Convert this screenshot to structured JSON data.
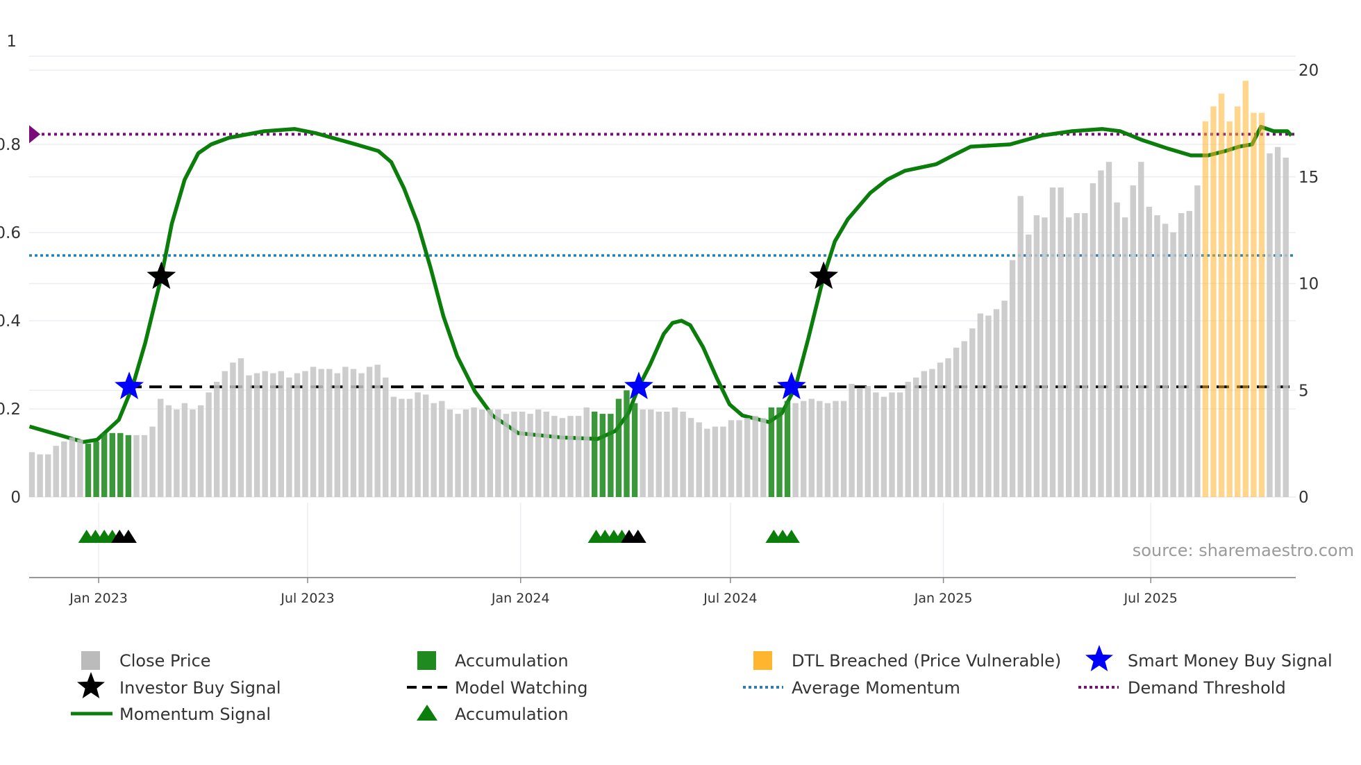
{
  "chart_data": {
    "type": "bar",
    "title": "",
    "x_unit": "week index",
    "x_ticks": [
      {
        "label": "Jan 2023",
        "week": 8.3
      },
      {
        "label": "Jul 2023",
        "week": 34.3
      },
      {
        "label": "Jan 2024",
        "week": 60.8
      },
      {
        "label": "Jul 2024",
        "week": 86.9
      },
      {
        "label": "Jan 2025",
        "week": 113.4
      },
      {
        "label": "Jul 2025",
        "week": 139.2
      }
    ],
    "left_axis": {
      "range": [
        0,
        1
      ],
      "ticks": [
        "0",
        "0.2",
        "0.4",
        "0.6",
        "0.8",
        "1"
      ],
      "tick_values": [
        0,
        0.2,
        0.4,
        0.6,
        0.8,
        1
      ]
    },
    "right_axis": {
      "range": [
        0,
        20
      ],
      "ticks": [
        "0",
        "5",
        "10",
        "15",
        "20"
      ],
      "tick_values": [
        0,
        5,
        10,
        15,
        20
      ]
    },
    "close_price": [
      2.1,
      2.0,
      2.0,
      2.4,
      2.6,
      2.8,
      2.7,
      2.5,
      2.6,
      3.0,
      3.0,
      3.0,
      2.9,
      2.9,
      2.9,
      3.3,
      4.6,
      4.3,
      4.1,
      4.4,
      4.1,
      4.3,
      4.9,
      5.4,
      5.9,
      6.3,
      6.5,
      5.7,
      5.8,
      5.9,
      5.8,
      5.9,
      5.6,
      5.8,
      5.9,
      6.1,
      6.0,
      6.0,
      5.8,
      6.1,
      6.0,
      5.8,
      6.1,
      6.2,
      5.6,
      4.7,
      4.6,
      4.6,
      4.9,
      4.8,
      4.4,
      4.5,
      4.1,
      3.9,
      4.1,
      4.2,
      4.1,
      4.1,
      4.1,
      3.9,
      4.0,
      4.0,
      3.9,
      4.1,
      4.0,
      3.8,
      3.7,
      3.8,
      3.8,
      4.2,
      4.0,
      3.9,
      3.9,
      4.6,
      5.0,
      4.4,
      4.1,
      4.1,
      4.0,
      4.0,
      4.2,
      4.0,
      3.7,
      3.5,
      3.2,
      3.3,
      3.3,
      3.6,
      3.6,
      3.7,
      3.8,
      3.7,
      4.2,
      4.2,
      4.5,
      4.4,
      4.5,
      4.6,
      4.5,
      4.4,
      4.5,
      4.5,
      5.3,
      5.1,
      5.2,
      4.9,
      4.7,
      4.9,
      4.9,
      5.4,
      5.6,
      5.9,
      6.0,
      6.3,
      6.5,
      7.0,
      7.3,
      7.9,
      8.6,
      8.5,
      8.8,
      9.2,
      11.1,
      14.1,
      12.3,
      13.2,
      13.1,
      14.5,
      14.5,
      13.1,
      13.3,
      13.3,
      14.7,
      15.3,
      15.7,
      13.8,
      13.1,
      14.6,
      15.7,
      13.6,
      13.2,
      12.8,
      12.4,
      13.3,
      13.4,
      14.6,
      17.6,
      18.3,
      18.9,
      17.6,
      18.3,
      19.5,
      18.0,
      18.0,
      16.1,
      16.4,
      15.9
    ],
    "accumulation_bars": [
      7,
      8,
      9,
      10,
      11,
      12,
      70,
      71,
      72,
      73,
      74,
      75,
      92,
      93,
      94
    ],
    "dtl_breached_bars": [
      146,
      147,
      148,
      149,
      150,
      151,
      152,
      153
    ],
    "momentum_signal": [
      [
        -0.3,
        0.16
      ],
      [
        6.4,
        0.125
      ],
      [
        8.1,
        0.13
      ],
      [
        10.8,
        0.175
      ],
      [
        12.5,
        0.25
      ],
      [
        14.1,
        0.35
      ],
      [
        16.1,
        0.5
      ],
      [
        17.4,
        0.62
      ],
      [
        19.0,
        0.72
      ],
      [
        20.7,
        0.78
      ],
      [
        22.3,
        0.8
      ],
      [
        24.5,
        0.815
      ],
      [
        28.9,
        0.83
      ],
      [
        32.7,
        0.835
      ],
      [
        35.4,
        0.825
      ],
      [
        40.3,
        0.8
      ],
      [
        43.1,
        0.785
      ],
      [
        44.7,
        0.76
      ],
      [
        46.3,
        0.7
      ],
      [
        48.0,
        0.62
      ],
      [
        49.6,
        0.52
      ],
      [
        51.2,
        0.41
      ],
      [
        52.9,
        0.32
      ],
      [
        55.1,
        0.24
      ],
      [
        57.3,
        0.185
      ],
      [
        60.5,
        0.145
      ],
      [
        66.0,
        0.135
      ],
      [
        70.4,
        0.132
      ],
      [
        72.6,
        0.15
      ],
      [
        74.2,
        0.19
      ],
      [
        75.5,
        0.25
      ],
      [
        76.9,
        0.3
      ],
      [
        78.6,
        0.37
      ],
      [
        79.7,
        0.395
      ],
      [
        80.8,
        0.4
      ],
      [
        81.9,
        0.39
      ],
      [
        83.5,
        0.34
      ],
      [
        85.2,
        0.27
      ],
      [
        86.8,
        0.21
      ],
      [
        88.4,
        0.185
      ],
      [
        91.7,
        0.17
      ],
      [
        93.3,
        0.19
      ],
      [
        95.0,
        0.25
      ],
      [
        96.6,
        0.36
      ],
      [
        98.5,
        0.5
      ],
      [
        99.9,
        0.58
      ],
      [
        101.5,
        0.63
      ],
      [
        104.3,
        0.69
      ],
      [
        106.4,
        0.72
      ],
      [
        108.6,
        0.74
      ],
      [
        112.5,
        0.755
      ],
      [
        114.6,
        0.775
      ],
      [
        116.8,
        0.795
      ],
      [
        121.7,
        0.8
      ],
      [
        125.6,
        0.82
      ],
      [
        129.4,
        0.83
      ],
      [
        133.2,
        0.835
      ],
      [
        135.4,
        0.83
      ],
      [
        138.1,
        0.81
      ],
      [
        141.4,
        0.79
      ],
      [
        144.2,
        0.775
      ],
      [
        146.3,
        0.775
      ],
      [
        148.5,
        0.785
      ],
      [
        150.2,
        0.795
      ],
      [
        151.8,
        0.8
      ],
      [
        152.9,
        0.84
      ],
      [
        154.5,
        0.83
      ],
      [
        156.2,
        0.83
      ],
      [
        156.7,
        0.82
      ]
    ],
    "model_watching": 0.25,
    "average_momentum": 0.548,
    "demand_threshold": 0.823,
    "smart_money_buy_signals": [
      [
        12.1,
        0.25
      ],
      [
        75.5,
        0.25
      ],
      [
        94.5,
        0.25
      ]
    ],
    "investor_buy_signals": [
      [
        16.1,
        0.5
      ],
      [
        98.5,
        0.5
      ]
    ],
    "accumulation_markers": [
      6.8,
      7.9,
      9.0,
      10.0,
      70.2,
      71.3,
      72.4,
      73.4,
      92.3,
      93.4,
      94.5
    ],
    "accumulation_markers_black": [
      10.9,
      12.0,
      74.3,
      75.4
    ],
    "legend": {
      "close_price": "Close Price",
      "accumulation": "Accumulation",
      "dtl_breached": "DTL Breached (Price Vulnerable)",
      "smart_money": "Smart Money Buy Signal",
      "investor_buy": "Investor Buy Signal",
      "model_watching": "Model Watching",
      "average_momentum": "Average Momentum",
      "demand_threshold": "Demand Threshold",
      "momentum_signal": "Momentum Signal",
      "accumulation_marker": "Accumulation"
    },
    "legend_position": "bottom",
    "source": "source: sharemaestro.com",
    "colors": {
      "close_price": "#c4c4c4",
      "accumulation": "#1f8a1f",
      "dtl_breached": "#ffb52e",
      "momentum": "#0a7d0a",
      "smart_money": "#0000ff",
      "investor": "#000000",
      "average_momentum": "#2a7fae",
      "demand_threshold": "#7b0a7b"
    }
  }
}
